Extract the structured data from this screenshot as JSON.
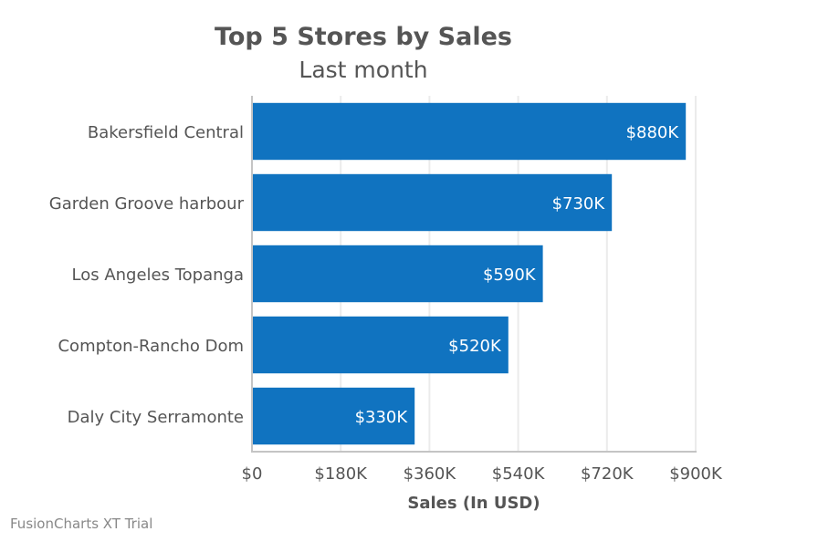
{
  "chart_data": {
    "type": "bar",
    "orientation": "horizontal",
    "title": "Top 5 Stores by Sales",
    "subtitle": "Last month",
    "xlabel": "Sales (In USD)",
    "ylabel": "",
    "categories": [
      "Bakersfield Central",
      "Garden Groove harbour",
      "Los Angeles Topanga",
      "Compton-Rancho Dom",
      "Daly City Serramonte"
    ],
    "values": [
      880000,
      730000,
      590000,
      520000,
      330000
    ],
    "value_labels": [
      "$880K",
      "$730K",
      "$590K",
      "$520K",
      "$330K"
    ],
    "xlim": [
      0,
      900000
    ],
    "x_ticks": [
      0,
      180000,
      360000,
      540000,
      720000,
      900000
    ],
    "x_tick_labels": [
      "$0",
      "$180K",
      "$360K",
      "$540K",
      "$720K",
      "$900K"
    ],
    "grid": true,
    "bar_color": "#1073c0"
  },
  "footer": {
    "credit": "FusionCharts XT Trial"
  }
}
